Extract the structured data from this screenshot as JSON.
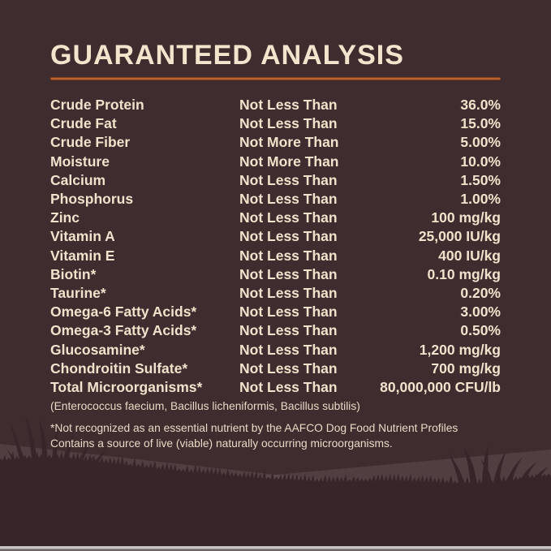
{
  "page": {
    "title": "GUARANTEED ANALYSIS",
    "colors": {
      "background": "#3E2C2E",
      "title_text": "#F3E5CD",
      "body_text": "#F0E2CC",
      "footnote_text": "#E7DAC6",
      "accent_rule": "#BC6130",
      "hill": "#6A585B",
      "foreground": "#382529",
      "bottom_edge": "#C7C3C2"
    }
  },
  "table": {
    "rows": [
      {
        "nutrient": "Crude Protein",
        "qualifier": "Not Less Than",
        "value": "36.0%"
      },
      {
        "nutrient": "Crude Fat",
        "qualifier": "Not Less Than",
        "value": "15.0%"
      },
      {
        "nutrient": "Crude Fiber",
        "qualifier": "Not More Than",
        "value": "5.00%"
      },
      {
        "nutrient": "Moisture",
        "qualifier": "Not More Than",
        "value": "10.0%"
      },
      {
        "nutrient": "Calcium",
        "qualifier": "Not Less Than",
        "value": "1.50%"
      },
      {
        "nutrient": "Phosphorus",
        "qualifier": "Not Less Than",
        "value": "1.00%"
      },
      {
        "nutrient": "Zinc",
        "qualifier": "Not Less Than",
        "value": "100 mg/kg"
      },
      {
        "nutrient": "Vitamin A",
        "qualifier": "Not Less Than",
        "value": "25,000 IU/kg"
      },
      {
        "nutrient": "Vitamin E",
        "qualifier": "Not Less Than",
        "value": "400 IU/kg"
      },
      {
        "nutrient": "Biotin*",
        "qualifier": "Not Less Than",
        "value": "0.10 mg/kg"
      },
      {
        "nutrient": "Taurine*",
        "qualifier": "Not Less Than",
        "value": "0.20%"
      },
      {
        "nutrient": "Omega-6 Fatty Acids*",
        "qualifier": "Not Less Than",
        "value": "3.00%"
      },
      {
        "nutrient": "Omega-3 Fatty Acids*",
        "qualifier": "Not Less Than",
        "value": "0.50%"
      },
      {
        "nutrient": "Glucosamine*",
        "qualifier": "Not Less Than",
        "value": "1,200 mg/kg"
      },
      {
        "nutrient": "Chondroitin Sulfate*",
        "qualifier": "Not Less Than",
        "value": "700 mg/kg"
      },
      {
        "nutrient": "Total Microorganisms*",
        "qualifier": "Not Less Than",
        "value": "80,000,000 CFU/lb"
      }
    ]
  },
  "footnotes": {
    "species_line": "(Enterococcus faecium, Bacillus licheniformis, Bacillus subtilis)",
    "aafco_line": "*Not recognized as an essential nutrient by the AAFCO Dog Food Nutrient Profiles",
    "live_line": "Contains a source of live (viable) naturally occurring microorganisms."
  }
}
